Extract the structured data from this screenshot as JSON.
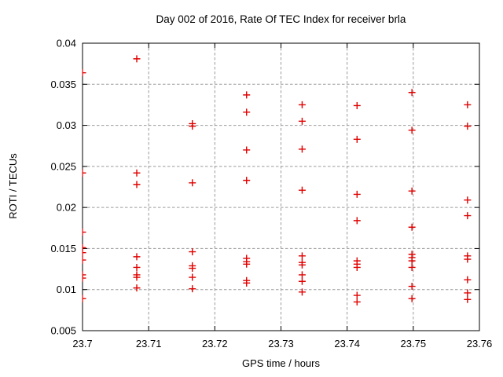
{
  "chart_data": {
    "type": "scatter",
    "title": "Day 002 of 2016, Rate Of TEC Index for receiver brla",
    "xlabel": "GPS time / hours",
    "ylabel": "ROTI / TECUs",
    "xlim": [
      23.7,
      23.76
    ],
    "ylim": [
      0.005,
      0.04
    ],
    "xticks": [
      {
        "v": 23.7,
        "label": "23.7"
      },
      {
        "v": 23.71,
        "label": "23.71"
      },
      {
        "v": 23.72,
        "label": "23.72"
      },
      {
        "v": 23.73,
        "label": "23.73"
      },
      {
        "v": 23.74,
        "label": "23.74"
      },
      {
        "v": 23.75,
        "label": "23.75"
      },
      {
        "v": 23.76,
        "label": "23.76"
      }
    ],
    "yticks": [
      {
        "v": 0.005,
        "label": "0.005"
      },
      {
        "v": 0.01,
        "label": "0.01"
      },
      {
        "v": 0.015,
        "label": "0.015"
      },
      {
        "v": 0.02,
        "label": "0.02"
      },
      {
        "v": 0.025,
        "label": "0.025"
      },
      {
        "v": 0.03,
        "label": "0.03"
      },
      {
        "v": 0.035,
        "label": "0.035"
      },
      {
        "v": 0.04,
        "label": "0.04"
      }
    ],
    "grid": true,
    "legend": "none",
    "marker": {
      "shape": "plus",
      "color": "#e00000"
    },
    "colors": {
      "axis": "#000000",
      "grid": "#9a9a9a",
      "background": "#ffffff"
    },
    "series": [
      {
        "name": "roti",
        "points": [
          [
            23.7,
            0.0364
          ],
          [
            23.7,
            0.0242
          ],
          [
            23.7,
            0.017
          ],
          [
            23.7,
            0.0151
          ],
          [
            23.7,
            0.0145
          ],
          [
            23.7,
            0.0136
          ],
          [
            23.7,
            0.0118
          ],
          [
            23.7,
            0.0114
          ],
          [
            23.7,
            0.0089
          ],
          [
            23.7082,
            0.0381
          ],
          [
            23.7082,
            0.0242
          ],
          [
            23.7082,
            0.0228
          ],
          [
            23.7082,
            0.014
          ],
          [
            23.7082,
            0.0127
          ],
          [
            23.7082,
            0.0118
          ],
          [
            23.7082,
            0.0115
          ],
          [
            23.7082,
            0.0102
          ],
          [
            23.7166,
            0.0302
          ],
          [
            23.7166,
            0.0299
          ],
          [
            23.7166,
            0.023
          ],
          [
            23.7166,
            0.0146
          ],
          [
            23.7166,
            0.0129
          ],
          [
            23.7166,
            0.0126
          ],
          [
            23.7166,
            0.0115
          ],
          [
            23.7166,
            0.0101
          ],
          [
            23.7248,
            0.0337
          ],
          [
            23.7248,
            0.0316
          ],
          [
            23.7248,
            0.027
          ],
          [
            23.7248,
            0.0233
          ],
          [
            23.7248,
            0.0138
          ],
          [
            23.7248,
            0.0134
          ],
          [
            23.7248,
            0.0131
          ],
          [
            23.7248,
            0.0111
          ],
          [
            23.7248,
            0.0108
          ],
          [
            23.7332,
            0.0325
          ],
          [
            23.7332,
            0.0305
          ],
          [
            23.7332,
            0.0271
          ],
          [
            23.7332,
            0.0221
          ],
          [
            23.7332,
            0.0141
          ],
          [
            23.7332,
            0.0133
          ],
          [
            23.7332,
            0.013
          ],
          [
            23.7332,
            0.0118
          ],
          [
            23.7332,
            0.011
          ],
          [
            23.7332,
            0.0097
          ],
          [
            23.7415,
            0.0324
          ],
          [
            23.7415,
            0.0283
          ],
          [
            23.7415,
            0.0216
          ],
          [
            23.7415,
            0.0184
          ],
          [
            23.7415,
            0.0135
          ],
          [
            23.7415,
            0.0131
          ],
          [
            23.7415,
            0.0127
          ],
          [
            23.7415,
            0.0093
          ],
          [
            23.7415,
            0.0085
          ],
          [
            23.7498,
            0.034
          ],
          [
            23.7498,
            0.0294
          ],
          [
            23.7498,
            0.022
          ],
          [
            23.7498,
            0.0176
          ],
          [
            23.7498,
            0.0143
          ],
          [
            23.7498,
            0.0139
          ],
          [
            23.7498,
            0.0135
          ],
          [
            23.7498,
            0.0127
          ],
          [
            23.7498,
            0.0104
          ],
          [
            23.7498,
            0.0089
          ],
          [
            23.7582,
            0.0325
          ],
          [
            23.7582,
            0.0299
          ],
          [
            23.7582,
            0.0209
          ],
          [
            23.7582,
            0.019
          ],
          [
            23.7582,
            0.0141
          ],
          [
            23.7582,
            0.0137
          ],
          [
            23.7582,
            0.0112
          ],
          [
            23.7582,
            0.0096
          ],
          [
            23.7582,
            0.0088
          ]
        ]
      }
    ]
  }
}
